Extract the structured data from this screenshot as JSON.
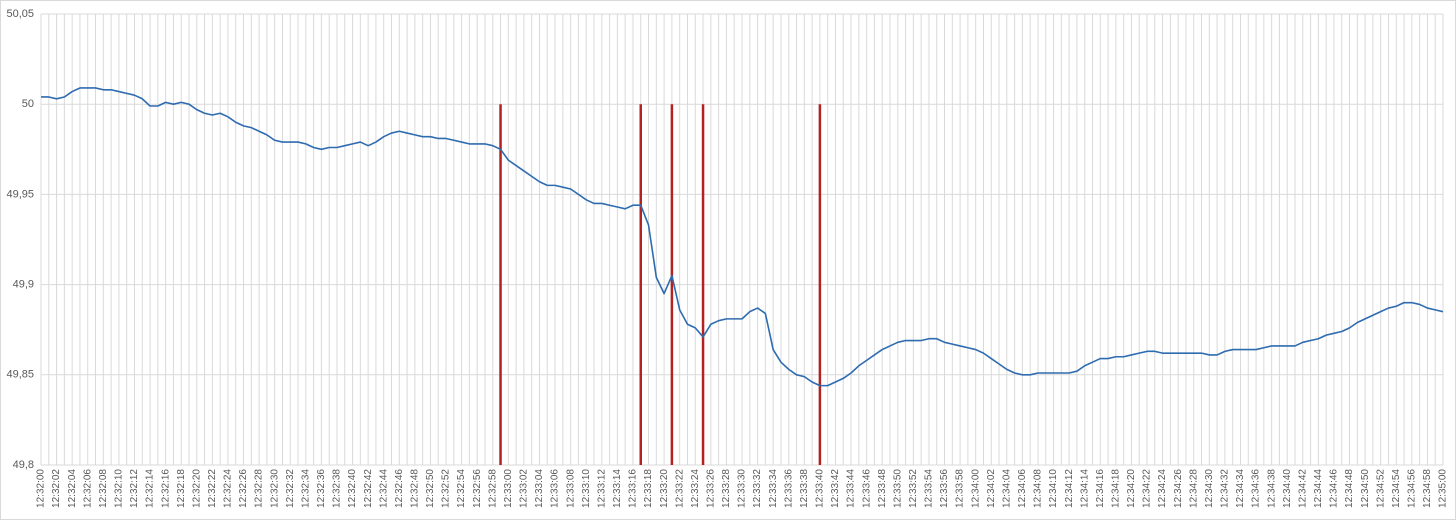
{
  "chart_data": {
    "type": "line",
    "categories": [
      "12:32:00",
      null,
      "12:32:02",
      null,
      "12:32:04",
      null,
      "12:32:06",
      null,
      "12:32:08",
      null,
      "12:32:10",
      null,
      "12:32:12",
      null,
      "12:32:14",
      null,
      "12:32:16",
      null,
      "12:32:18",
      null,
      "12:32:20",
      null,
      "12:32:22",
      null,
      "12:32:24",
      null,
      "12:32:26",
      null,
      "12:32:28",
      null,
      "12:32:30",
      null,
      "12:32:32",
      null,
      "12:32:34",
      null,
      "12:32:36",
      null,
      "12:32:38",
      null,
      "12:32:40",
      null,
      "12:32:42",
      null,
      "12:32:44",
      null,
      "12:32:46",
      null,
      "12:32:48",
      null,
      "12:32:50",
      null,
      "12:32:52",
      null,
      "12:32:54",
      null,
      "12:32:56",
      null,
      "12:32:58",
      null,
      "12:33:00",
      null,
      "12:33:02",
      null,
      "12:33:04",
      null,
      "12:33:06",
      null,
      "12:33:08",
      null,
      "12:33:10",
      null,
      "12:33:12",
      null,
      "12:33:14",
      null,
      "12:33:16",
      null,
      "12:33:18",
      null,
      "12:33:20",
      null,
      "12:33:22",
      null,
      "12:33:24",
      null,
      "12:33:26",
      null,
      "12:33:28",
      null,
      "12:33:30",
      null,
      "12:33:32",
      null,
      "12:33:34",
      null,
      "12:33:36",
      null,
      "12:33:38",
      null,
      "12:33:40",
      null,
      "12:33:42",
      null,
      "12:33:44",
      null,
      "12:33:46",
      null,
      "12:33:48",
      null,
      "12:33:50",
      null,
      "12:33:52",
      null,
      "12:33:54",
      null,
      "12:33:56",
      null,
      "12:33:58",
      null,
      "12:34:00",
      null,
      "12:34:02",
      null,
      "12:34:04",
      null,
      "12:34:06",
      null,
      "12:34:08",
      null,
      "12:34:10",
      null,
      "12:34:12",
      null,
      "12:34:14",
      null,
      "12:34:16",
      null,
      "12:34:18",
      null,
      "12:34:20",
      null,
      "12:34:22",
      null,
      "12:34:24",
      null,
      "12:34:26",
      null,
      "12:34:28",
      null,
      "12:34:30",
      null,
      "12:34:32",
      null,
      "12:34:34",
      null,
      "12:34:36",
      null,
      "12:34:38",
      null,
      "12:34:40",
      null,
      "12:34:42",
      null,
      "12:34:44",
      null,
      "12:34:46",
      null,
      "12:34:48",
      null,
      "12:34:50",
      null,
      "12:34:52",
      null,
      "12:34:54",
      null,
      "12:34:56",
      null,
      "12:34:58",
      null,
      "12:35:00"
    ],
    "values": [
      50.004,
      50.004,
      50.003,
      50.004,
      50.007,
      50.009,
      50.009,
      50.009,
      50.008,
      50.008,
      50.007,
      50.006,
      50.005,
      50.003,
      49.999,
      49.999,
      50.001,
      50.0,
      50.001,
      50.0,
      49.997,
      49.995,
      49.994,
      49.995,
      49.993,
      49.99,
      49.988,
      49.987,
      49.985,
      49.983,
      49.98,
      49.979,
      49.979,
      49.979,
      49.978,
      49.976,
      49.975,
      49.976,
      49.976,
      49.977,
      49.978,
      49.979,
      49.977,
      49.979,
      49.982,
      49.984,
      49.985,
      49.984,
      49.983,
      49.982,
      49.982,
      49.981,
      49.981,
      49.98,
      49.979,
      49.978,
      49.978,
      49.978,
      49.977,
      49.975,
      49.969,
      49.966,
      49.963,
      49.96,
      49.957,
      49.955,
      49.955,
      49.954,
      49.953,
      49.95,
      49.947,
      49.945,
      49.945,
      49.944,
      49.943,
      49.942,
      49.944,
      49.944,
      49.933,
      49.904,
      49.895,
      49.905,
      49.886,
      49.878,
      49.876,
      49.871,
      49.878,
      49.88,
      49.881,
      49.881,
      49.881,
      49.885,
      49.887,
      49.884,
      49.864,
      49.857,
      49.853,
      49.85,
      49.849,
      49.846,
      49.844,
      49.844,
      49.846,
      49.848,
      49.851,
      49.855,
      49.858,
      49.861,
      49.864,
      49.866,
      49.868,
      49.869,
      49.869,
      49.869,
      49.87,
      49.87,
      49.868,
      49.867,
      49.866,
      49.865,
      49.864,
      49.862,
      49.859,
      49.856,
      49.853,
      49.851,
      49.85,
      49.85,
      49.851,
      49.851,
      49.851,
      49.851,
      49.851,
      49.852,
      49.855,
      49.857,
      49.859,
      49.859,
      49.86,
      49.86,
      49.861,
      49.862,
      49.863,
      49.863,
      49.862,
      49.862,
      49.862,
      49.862,
      49.862,
      49.862,
      49.861,
      49.861,
      49.863,
      49.864,
      49.864,
      49.864,
      49.864,
      49.865,
      49.866,
      49.866,
      49.866,
      49.866,
      49.868,
      49.869,
      49.87,
      49.872,
      49.873,
      49.874,
      49.876,
      49.879,
      49.881,
      49.883,
      49.885,
      49.887,
      49.888,
      49.89,
      49.89,
      49.889,
      49.887,
      49.886,
      49.885
    ],
    "color": "#2e6bb0",
    "ylim": [
      49.8,
      50.05
    ],
    "yticks": [
      {
        "value": 49.8,
        "label": "49,8"
      },
      {
        "value": 49.85,
        "label": "49,85"
      },
      {
        "value": 49.9,
        "label": "49,9"
      },
      {
        "value": 49.95,
        "label": "49,95"
      },
      50,
      {
        "value": 50.05,
        "label": "50,05"
      }
    ],
    "grid": true,
    "markers": {
      "indices": [
        59,
        77,
        81,
        85,
        100
      ],
      "from": 50,
      "color": "#b22222"
    }
  }
}
